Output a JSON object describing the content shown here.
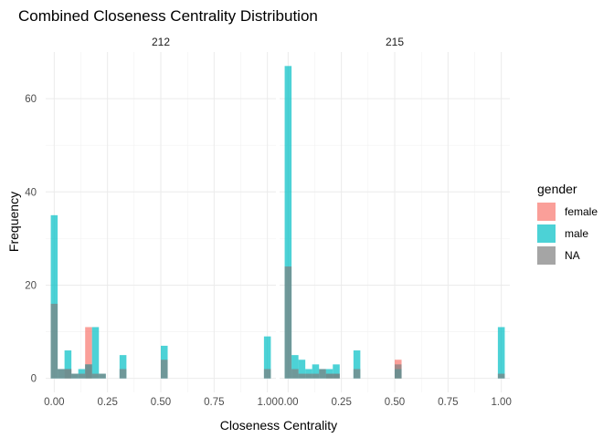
{
  "chart_data": {
    "type": "histogram",
    "title": "Combined Closeness Centrality Distribution",
    "xlabel": "Closeness Centrality",
    "ylabel": "Frequency",
    "xlim": [
      -0.04,
      1.04
    ],
    "ylim": [
      -3,
      70
    ],
    "x_ticks": [
      0.0,
      0.25,
      0.5,
      0.75,
      1.0
    ],
    "x_tick_labels": [
      "0.00",
      "0.25",
      "0.50",
      "0.75",
      "1.00"
    ],
    "y_ticks": [
      0,
      20,
      40,
      60
    ],
    "y_tick_labels": [
      "0",
      "20",
      "40",
      "60"
    ],
    "bin_width": 0.0323,
    "legend": {
      "title": "gender",
      "position": "right",
      "entries": [
        {
          "label": "female",
          "color": "#F8766D"
        },
        {
          "label": "male",
          "color": "#00BFC4"
        },
        {
          "label": "NA",
          "color": "#7F7F7F"
        }
      ]
    },
    "facets": [
      {
        "label": "212",
        "series": [
          {
            "name": "female",
            "x": [
              0.0645,
              0.1613
            ],
            "values": [
              2,
              11
            ]
          },
          {
            "name": "male",
            "x": [
              0.0,
              0.0323,
              0.0645,
              0.0968,
              0.129,
              0.1613,
              0.1935,
              0.2258,
              0.3226,
              0.5161,
              1.0
            ],
            "values": [
              35,
              2,
              6,
              1,
              2,
              3,
              11,
              1,
              5,
              7,
              9
            ]
          },
          {
            "name": "NA",
            "x": [
              0.0,
              0.0323,
              0.0645,
              0.0968,
              0.129,
              0.1613,
              0.1935,
              0.2258,
              0.3226,
              0.5161,
              1.0
            ],
            "values": [
              16,
              2,
              2,
              1,
              1,
              3,
              1,
              1,
              2,
              4,
              2
            ]
          }
        ]
      },
      {
        "label": "215",
        "series": [
          {
            "name": "female",
            "x": [
              0.1935,
              0.2258,
              0.5161
            ],
            "values": [
              1,
              1,
              4
            ]
          },
          {
            "name": "male",
            "x": [
              0.0,
              0.0323,
              0.0645,
              0.0968,
              0.129,
              0.1613,
              0.1935,
              0.2258,
              0.3226,
              0.5161,
              1.0
            ],
            "values": [
              67,
              5,
              4,
              2,
              3,
              2,
              2,
              3,
              6,
              2,
              11
            ]
          },
          {
            "name": "NA",
            "x": [
              0.0,
              0.0323,
              0.0645,
              0.0968,
              0.129,
              0.1613,
              0.1935,
              0.2258,
              0.3226,
              0.5161,
              1.0
            ],
            "values": [
              24,
              2,
              1,
              1,
              1,
              2,
              1,
              1,
              2,
              3,
              1
            ]
          }
        ]
      }
    ],
    "grid": true
  }
}
